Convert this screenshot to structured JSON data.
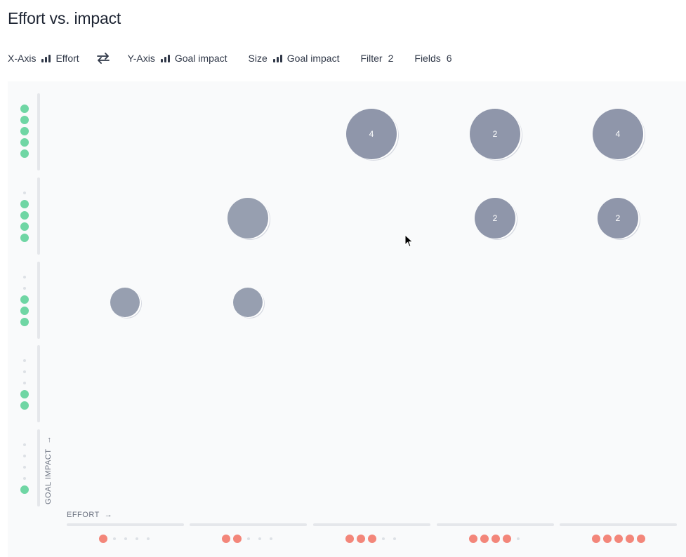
{
  "page": {
    "title": "Effort vs. impact"
  },
  "toolbar": {
    "x_axis_label": "X-Axis",
    "x_axis_value": "Effort",
    "y_axis_label": "Y-Axis",
    "y_axis_value": "Goal impact",
    "size_label": "Size",
    "size_value": "Goal impact",
    "filter_label": "Filter",
    "filter_count": "2",
    "fields_label": "Fields",
    "fields_count": "6"
  },
  "chart": {
    "x_label": "EFFORT",
    "y_label": "GOAL IMPACT",
    "x_scale": {
      "max_level": 5,
      "color": "#f3867a"
    },
    "y_scale": {
      "max_level": 5,
      "color": "#6fd6a4"
    },
    "bubble_color": "#8f96aa",
    "icons": {
      "arrow": "arrow-right-icon",
      "swap": "swap-arrows-icon",
      "cursor": "mouse-pointer-icon"
    }
  },
  "chart_data": {
    "type": "scatter",
    "xlabel": "EFFORT",
    "ylabel": "GOAL IMPACT",
    "x_levels": [
      1,
      2,
      3,
      4,
      5
    ],
    "y_levels": [
      1,
      2,
      3,
      4,
      5
    ],
    "points": [
      {
        "effort": 3,
        "impact": 5,
        "count": "4"
      },
      {
        "effort": 4,
        "impact": 5,
        "count": "2"
      },
      {
        "effort": 5,
        "impact": 5,
        "count": "4"
      },
      {
        "effort": 2,
        "impact": 4,
        "count": ""
      },
      {
        "effort": 4,
        "impact": 4,
        "count": "2"
      },
      {
        "effort": 5,
        "impact": 4,
        "count": "2"
      },
      {
        "effort": 1,
        "impact": 3,
        "count": ""
      },
      {
        "effort": 2,
        "impact": 3,
        "count": ""
      }
    ]
  }
}
